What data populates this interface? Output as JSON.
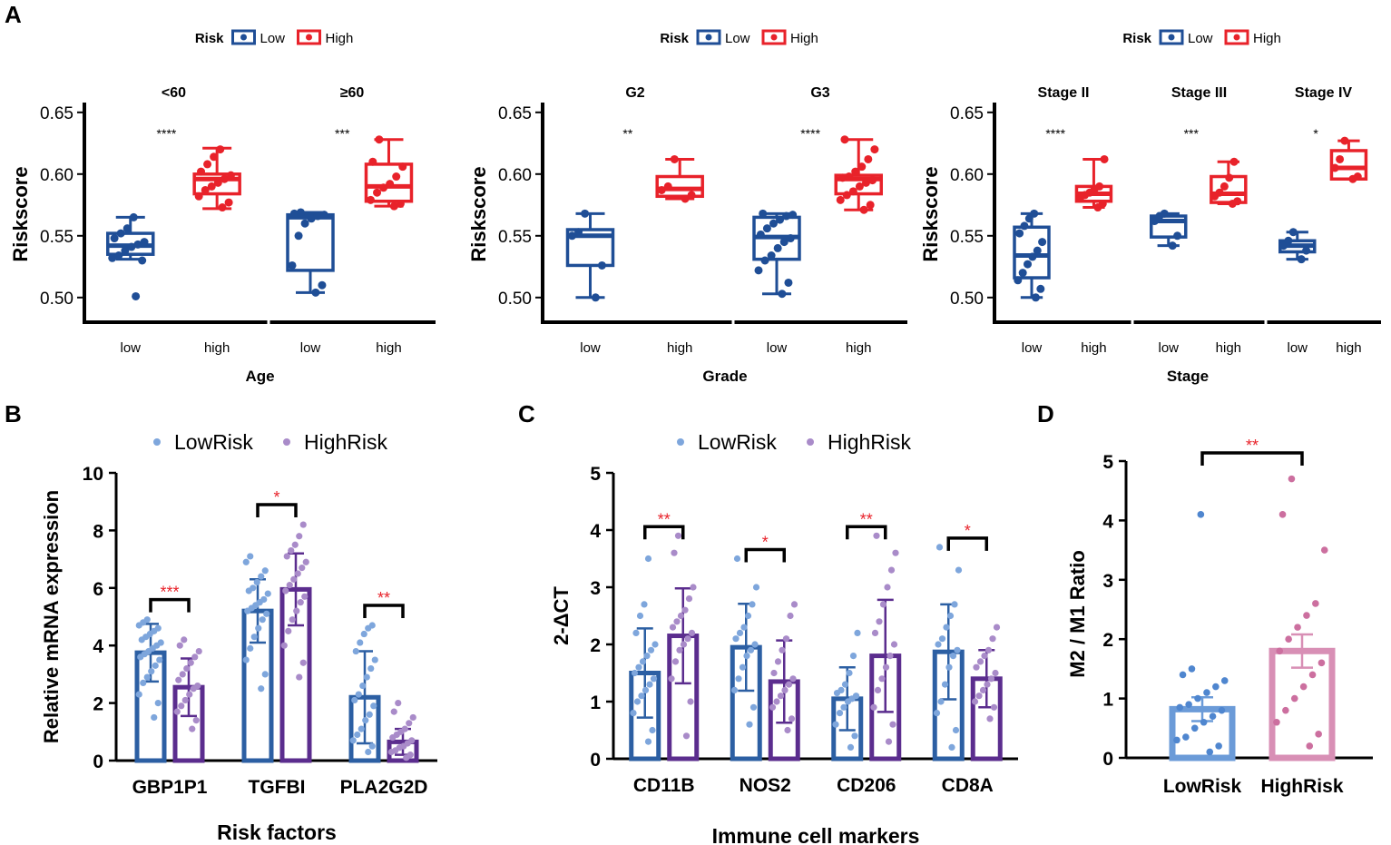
{
  "figure": {
    "panel_labels": [
      "A",
      "B",
      "C",
      "D"
    ],
    "significance_stars": [
      "****",
      "***",
      "**",
      "****",
      "****",
      "***",
      "*",
      "***",
      "*",
      "**",
      "**",
      "*",
      "**",
      "*",
      "**"
    ]
  },
  "colors": {
    "low_box": "#1f4e96",
    "high_box": "#e8222a",
    "low_bar": "#2c5fa3",
    "low_dot": "#7ea6dc",
    "high_bar": "#5b2d8e",
    "high_dot": "#a98bc9",
    "sig_star": "#e8222a",
    "d_low_bar": "#6b9bd8",
    "d_low_dot": "#4f86cf",
    "d_high_bar": "#d88fb5",
    "d_high_dot": "#cc6f9f"
  },
  "chart_data": [
    {
      "id": "A1",
      "type": "boxplot",
      "legend": {
        "title": "Risk",
        "entries": [
          "Low",
          "High"
        ]
      },
      "ylabel": "Riskscore",
      "xlabel": "Age",
      "ylim": [
        0.48,
        0.655
      ],
      "yticks": [
        "0.50",
        "0.55",
        "0.60",
        "0.65"
      ],
      "ytick_values": [
        0.5,
        0.55,
        0.6,
        0.65
      ],
      "facets": [
        {
          "title": "<60",
          "sig": "****",
          "groups": [
            {
              "label": "low",
              "risk": "low",
              "min": 0.531,
              "q1": 0.535,
              "median": 0.542,
              "q3": 0.552,
              "max": 0.565,
              "points": [
                0.501,
                0.53,
                0.532,
                0.534,
                0.538,
                0.541,
                0.543,
                0.545,
                0.548,
                0.552,
                0.556,
                0.565
              ]
            },
            {
              "label": "high",
              "risk": "high",
              "min": 0.572,
              "q1": 0.584,
              "median": 0.596,
              "q3": 0.6,
              "max": 0.621,
              "points": [
                0.573,
                0.577,
                0.582,
                0.587,
                0.59,
                0.593,
                0.596,
                0.599,
                0.602,
                0.608,
                0.614,
                0.62
              ]
            }
          ]
        },
        {
          "title": "≥60",
          "sig": "***",
          "groups": [
            {
              "label": "low",
              "risk": "low",
              "min": 0.504,
              "q1": 0.522,
              "median": 0.565,
              "q3": 0.567,
              "max": 0.569,
              "points": [
                0.504,
                0.51,
                0.526,
                0.55,
                0.56,
                0.564,
                0.566,
                0.567,
                0.568,
                0.569
              ]
            },
            {
              "label": "high",
              "risk": "high",
              "min": 0.574,
              "q1": 0.578,
              "median": 0.59,
              "q3": 0.608,
              "max": 0.628,
              "points": [
                0.574,
                0.576,
                0.579,
                0.585,
                0.589,
                0.592,
                0.598,
                0.606,
                0.61,
                0.628
              ]
            }
          ]
        }
      ]
    },
    {
      "id": "A2",
      "type": "boxplot",
      "legend": {
        "title": "Risk",
        "entries": [
          "Low",
          "High"
        ]
      },
      "ylabel": "Riskscore",
      "xlabel": "Grade",
      "ylim": [
        0.48,
        0.655
      ],
      "yticks": [
        "0.50",
        "0.55",
        "0.60",
        "0.65"
      ],
      "ytick_values": [
        0.5,
        0.55,
        0.6,
        0.65
      ],
      "facets": [
        {
          "title": "G2",
          "sig": "**",
          "groups": [
            {
              "label": "low",
              "risk": "low",
              "min": 0.5,
              "q1": 0.526,
              "median": 0.55,
              "q3": 0.555,
              "max": 0.568,
              "points": [
                0.5,
                0.526,
                0.55,
                0.553,
                0.568
              ]
            },
            {
              "label": "high",
              "risk": "high",
              "min": 0.58,
              "q1": 0.582,
              "median": 0.588,
              "q3": 0.598,
              "max": 0.612,
              "points": [
                0.58,
                0.583,
                0.587,
                0.59,
                0.612
              ]
            }
          ]
        },
        {
          "title": "G3",
          "sig": "****",
          "groups": [
            {
              "label": "low",
              "risk": "low",
              "min": 0.503,
              "q1": 0.531,
              "median": 0.549,
              "q3": 0.565,
              "max": 0.568,
              "points": [
                0.503,
                0.512,
                0.522,
                0.53,
                0.534,
                0.54,
                0.545,
                0.548,
                0.551,
                0.556,
                0.56,
                0.563,
                0.566,
                0.567,
                0.568
              ]
            },
            {
              "label": "high",
              "risk": "high",
              "min": 0.571,
              "q1": 0.584,
              "median": 0.596,
              "q3": 0.599,
              "max": 0.628,
              "points": [
                0.571,
                0.575,
                0.579,
                0.583,
                0.586,
                0.59,
                0.593,
                0.595,
                0.597,
                0.598,
                0.602,
                0.606,
                0.612,
                0.62,
                0.628
              ]
            }
          ]
        }
      ]
    },
    {
      "id": "A3",
      "type": "boxplot",
      "legend": {
        "title": "Risk",
        "entries": [
          "Low",
          "High"
        ]
      },
      "ylabel": "Riskscore",
      "xlabel": "Stage",
      "ylim": [
        0.48,
        0.655
      ],
      "yticks": [
        "0.50",
        "0.55",
        "0.60",
        "0.65"
      ],
      "ytick_values": [
        0.5,
        0.55,
        0.6,
        0.65
      ],
      "facets": [
        {
          "title": "Stage II",
          "sig": "****",
          "groups": [
            {
              "label": "low",
              "risk": "low",
              "min": 0.5,
              "q1": 0.516,
              "median": 0.534,
              "q3": 0.557,
              "max": 0.568,
              "points": [
                0.5,
                0.507,
                0.514,
                0.52,
                0.527,
                0.533,
                0.538,
                0.545,
                0.552,
                0.558,
                0.564,
                0.568
              ]
            },
            {
              "label": "high",
              "risk": "high",
              "min": 0.573,
              "q1": 0.578,
              "median": 0.584,
              "q3": 0.59,
              "max": 0.612,
              "points": [
                0.573,
                0.576,
                0.58,
                0.583,
                0.585,
                0.588,
                0.59,
                0.612
              ]
            }
          ]
        },
        {
          "title": "Stage III",
          "sig": "***",
          "groups": [
            {
              "label": "low",
              "risk": "low",
              "min": 0.542,
              "q1": 0.549,
              "median": 0.562,
              "q3": 0.566,
              "max": 0.568,
              "points": [
                0.542,
                0.55,
                0.562,
                0.566,
                0.568
              ]
            },
            {
              "label": "high",
              "risk": "high",
              "min": 0.576,
              "q1": 0.577,
              "median": 0.584,
              "q3": 0.598,
              "max": 0.61,
              "points": [
                0.576,
                0.578,
                0.582,
                0.585,
                0.59,
                0.597,
                0.61
              ]
            }
          ]
        },
        {
          "title": "Stage IV",
          "sig": "*",
          "groups": [
            {
              "label": "low",
              "risk": "low",
              "min": 0.531,
              "q1": 0.537,
              "median": 0.542,
              "q3": 0.546,
              "max": 0.553,
              "points": [
                0.531,
                0.538,
                0.542,
                0.546,
                0.553
              ]
            },
            {
              "label": "high",
              "risk": "high",
              "min": 0.596,
              "q1": 0.596,
              "median": 0.605,
              "q3": 0.619,
              "max": 0.627,
              "points": [
                0.596,
                0.598,
                0.605,
                0.612,
                0.627
              ]
            }
          ]
        }
      ]
    },
    {
      "id": "B",
      "type": "bar",
      "legend": [
        "LowRisk",
        "HighRisk"
      ],
      "ylabel": "Relative mRNA expression",
      "xlabel": "Risk factors",
      "ylim": [
        0,
        10
      ],
      "yticks": [
        "0",
        "2",
        "4",
        "6",
        "8",
        "10"
      ],
      "ytick_values": [
        0,
        2,
        4,
        6,
        8,
        10
      ],
      "categories": [
        "GBP1P1",
        "TGFBI",
        "PLA2G2D"
      ],
      "series": [
        {
          "name": "LowRisk",
          "values": [
            3.75,
            5.2,
            2.2
          ],
          "sd": [
            1.0,
            1.1,
            1.6
          ],
          "points": [
            [
              1.5,
              2.0,
              2.3,
              2.7,
              2.9,
              3.1,
              3.3,
              3.5,
              3.6,
              3.7,
              3.8,
              3.9,
              4.0,
              4.1,
              4.2,
              4.3,
              4.4,
              4.5,
              4.6,
              4.7,
              4.8,
              4.9
            ],
            [
              2.5,
              3.0,
              3.5,
              3.9,
              4.3,
              4.6,
              4.9,
              5.1,
              5.2,
              5.3,
              5.4,
              5.5,
              5.6,
              5.8,
              5.9,
              6.0,
              6.2,
              6.4,
              6.6,
              6.9,
              7.1
            ],
            [
              0.3,
              0.5,
              0.7,
              0.9,
              1.1,
              1.4,
              1.6,
              1.9,
              2.1,
              2.3,
              2.6,
              2.9,
              3.2,
              3.5,
              3.8,
              4.1,
              4.4,
              4.6,
              4.7
            ]
          ]
        },
        {
          "name": "HighRisk",
          "values": [
            2.55,
            5.95,
            0.65
          ],
          "sd": [
            1.0,
            1.25,
            0.45
          ],
          "points": [
            [
              1.1,
              1.4,
              1.7,
              1.9,
              2.1,
              2.3,
              2.5,
              2.6,
              2.8,
              3.0,
              3.2,
              3.4,
              3.6,
              3.8,
              4.0,
              4.2
            ],
            [
              2.9,
              3.4,
              4.0,
              4.5,
              4.9,
              5.2,
              5.5,
              5.7,
              5.9,
              6.1,
              6.3,
              6.5,
              6.7,
              6.9,
              7.1,
              7.3,
              7.5,
              7.8,
              8.2
            ],
            [
              0.1,
              0.2,
              0.3,
              0.35,
              0.45,
              0.5,
              0.6,
              0.7,
              0.8,
              0.9,
              1.0,
              1.1,
              1.3,
              1.5,
              1.7,
              2.0
            ]
          ]
        }
      ],
      "significance": [
        "***",
        "*",
        "**"
      ]
    },
    {
      "id": "C",
      "type": "bar",
      "legend": [
        "LowRisk",
        "HighRisk"
      ],
      "ylabel": "2-ΔCT",
      "xlabel": "Immune cell markers",
      "ylim": [
        0,
        5
      ],
      "yticks": [
        "0",
        "1",
        "2",
        "3",
        "4",
        "5"
      ],
      "ytick_values": [
        0,
        1,
        2,
        3,
        4,
        5
      ],
      "categories": [
        "CD11B",
        "NOS2",
        "CD206",
        "CD8A"
      ],
      "series": [
        {
          "name": "LowRisk",
          "values": [
            1.5,
            1.95,
            1.05,
            1.87
          ],
          "sd": [
            0.78,
            0.76,
            0.55,
            0.83
          ],
          "points": [
            [
              0.3,
              0.5,
              0.8,
              1.0,
              1.1,
              1.2,
              1.3,
              1.4,
              1.5,
              1.6,
              1.7,
              1.8,
              1.9,
              2.0,
              2.2,
              2.5,
              2.7,
              3.5
            ],
            [
              0.6,
              0.9,
              1.2,
              1.4,
              1.6,
              1.8,
              1.9,
              2.0,
              2.1,
              2.2,
              2.3,
              2.5,
              2.7,
              3.0,
              3.5
            ],
            [
              0.2,
              0.4,
              0.6,
              0.8,
              0.9,
              1.0,
              1.05,
              1.1,
              1.15,
              1.2,
              1.3,
              1.5,
              1.8,
              2.2
            ],
            [
              0.2,
              0.5,
              0.8,
              1.0,
              1.3,
              1.6,
              1.8,
              1.9,
              2.0,
              2.1,
              2.3,
              2.5,
              2.7,
              3.3,
              3.7
            ]
          ]
        },
        {
          "name": "HighRisk",
          "values": [
            2.15,
            1.35,
            1.8,
            1.4
          ],
          "sd": [
            0.83,
            0.72,
            0.98,
            0.5
          ],
          "points": [
            [
              0.4,
              1.0,
              1.4,
              1.7,
              1.9,
              2.0,
              2.1,
              2.2,
              2.3,
              2.4,
              2.5,
              2.6,
              2.8,
              3.0,
              3.6,
              3.9
            ],
            [
              0.5,
              0.7,
              0.9,
              1.0,
              1.1,
              1.2,
              1.3,
              1.4,
              1.5,
              1.7,
              1.9,
              2.1,
              2.5,
              2.7
            ],
            [
              0.3,
              0.6,
              0.9,
              1.2,
              1.4,
              1.6,
              1.8,
              2.0,
              2.2,
              2.4,
              2.7,
              3.0,
              3.3,
              3.6,
              3.9
            ],
            [
              0.7,
              0.9,
              1.0,
              1.1,
              1.2,
              1.3,
              1.4,
              1.5,
              1.6,
              1.7,
              1.8,
              1.9,
              2.1,
              2.3
            ]
          ]
        }
      ],
      "significance": [
        "**",
        "*",
        "**",
        "*"
      ]
    },
    {
      "id": "D",
      "type": "bar",
      "ylabel": "M2 / M1  Ratio",
      "xlabel": "",
      "ylim": [
        0,
        5
      ],
      "yticks": [
        "0",
        "1",
        "2",
        "3",
        "4",
        "5"
      ],
      "ytick_values": [
        0,
        1,
        2,
        3,
        4,
        5
      ],
      "categories": [
        "LowRisk",
        "HighRisk"
      ],
      "values": [
        0.82,
        1.8
      ],
      "sem": [
        0.2,
        0.28
      ],
      "points": [
        [
          0.1,
          0.2,
          0.3,
          0.35,
          0.5,
          0.6,
          0.7,
          0.8,
          0.85,
          0.9,
          1.0,
          1.1,
          1.2,
          1.3,
          1.4,
          1.5,
          4.1
        ],
        [
          0.2,
          0.4,
          0.6,
          0.8,
          1.0,
          1.2,
          1.4,
          1.6,
          1.8,
          2.0,
          2.2,
          2.4,
          2.6,
          3.5,
          4.1,
          4.7
        ]
      ],
      "significance": "**"
    }
  ]
}
